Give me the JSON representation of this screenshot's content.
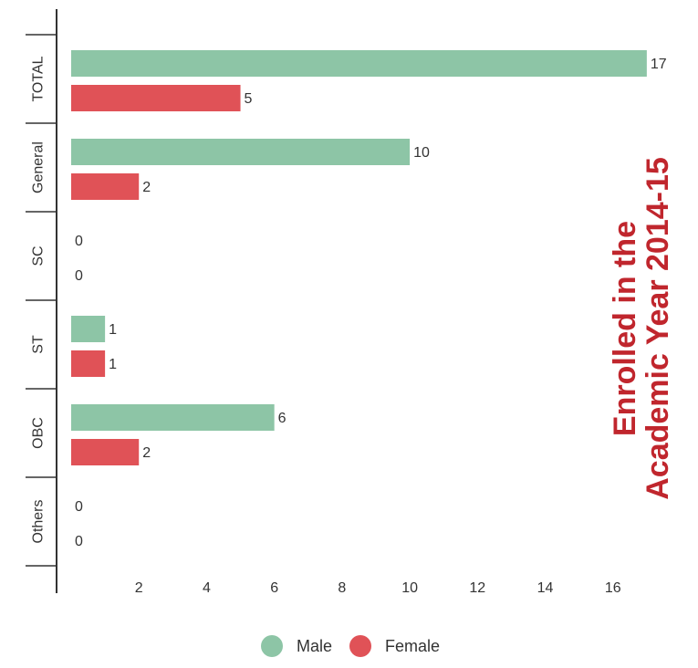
{
  "chart_data": {
    "type": "bar",
    "orientation": "horizontal",
    "categories": [
      "TOTAL",
      "General",
      "SC",
      "ST",
      "OBC",
      "Others"
    ],
    "series": [
      {
        "name": "Male",
        "values": [
          17,
          10,
          0,
          1,
          6,
          0
        ],
        "color": "#8dc5a6"
      },
      {
        "name": "Female",
        "values": [
          5,
          2,
          0,
          1,
          2,
          0
        ],
        "color": "#e05257"
      }
    ],
    "x_ticks": [
      2,
      4,
      6,
      8,
      10,
      12,
      14,
      16
    ],
    "xlim": [
      0,
      17.3
    ],
    "title": "",
    "side_title_lines": [
      "Enrolled in the",
      "Academic Year 2014-15"
    ],
    "xlabel": "",
    "ylabel": "",
    "grid": false,
    "legend_position": "bottom"
  }
}
